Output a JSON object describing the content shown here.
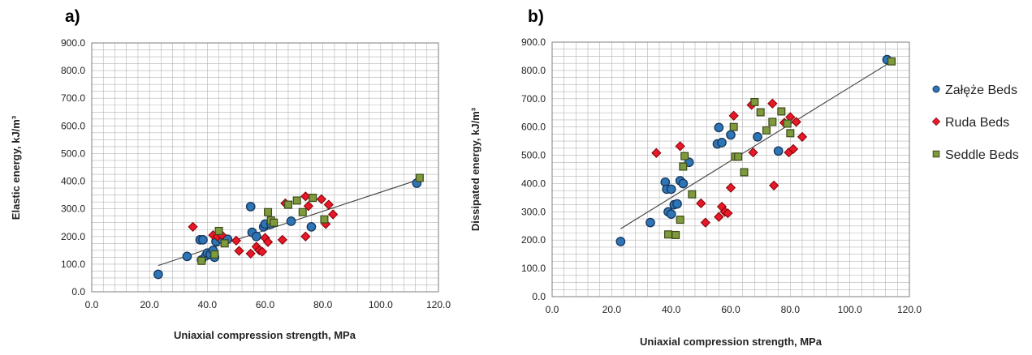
{
  "series_styles": [
    {
      "key": "zaleze",
      "name": "Załęże Beds",
      "color": "#2e75b6",
      "stroke": "#17365d",
      "marker": "circle"
    },
    {
      "key": "ruda",
      "name": "Ruda Beds",
      "color": "#e8182a",
      "stroke": "#7f0000",
      "marker": "diamond"
    },
    {
      "key": "seddle",
      "name": "Seddle Beds",
      "color": "#7f9a3c",
      "stroke": "#3b4a1a",
      "marker": "square"
    }
  ],
  "chart_data": [
    {
      "type": "scatter",
      "panel_label": "a)",
      "xlabel": "Uniaxial compression strength, MPa",
      "ylabel": "Elastic energy, kJ/m³",
      "xlim": [
        0,
        120
      ],
      "ylim": [
        0,
        900
      ],
      "x_ticks": [
        "0.0",
        "20.0",
        "40.0",
        "60.0",
        "80.0",
        "100.0",
        "120.0"
      ],
      "y_ticks": [
        "0.0",
        "100.0",
        "200.0",
        "300.0",
        "400.0",
        "500.0",
        "600.0",
        "700.0",
        "800.0",
        "900.0"
      ],
      "grid": true,
      "trendline": {
        "x": [
          23,
          113
        ],
        "y": [
          95,
          405
        ]
      },
      "series": [
        {
          "name": "Załęże Beds",
          "x": [
            23,
            33,
            37.5,
            38.5,
            38,
            39.5,
            40,
            41,
            42,
            42.5,
            43,
            45,
            47,
            55,
            55.5,
            57,
            59.5,
            60,
            62,
            69,
            76,
            112.5
          ],
          "y": [
            63,
            128,
            188,
            188,
            115,
            130,
            140,
            135,
            150,
            125,
            182,
            190,
            190,
            308,
            215,
            200,
            235,
            245,
            245,
            255,
            235,
            393
          ]
        },
        {
          "name": "Ruda Beds",
          "x": [
            35,
            42,
            43.5,
            45,
            50,
            51,
            55,
            57,
            58,
            59,
            60,
            61,
            66,
            67,
            74,
            74,
            75,
            79.5,
            81,
            82,
            83.5
          ],
          "y": [
            235,
            205,
            200,
            205,
            185,
            148,
            138,
            163,
            150,
            145,
            195,
            180,
            188,
            320,
            345,
            200,
            310,
            335,
            245,
            315,
            280
          ]
        },
        {
          "name": "Seddle Beds",
          "x": [
            38,
            42.5,
            44,
            46,
            61,
            62,
            63,
            68,
            71,
            73,
            76.5,
            80.5,
            113.5
          ],
          "y": [
            112,
            135,
            220,
            175,
            288,
            258,
            250,
            315,
            330,
            288,
            340,
            262,
            412
          ]
        }
      ]
    },
    {
      "type": "scatter",
      "panel_label": "b)",
      "xlabel": "Uniaxial compression strength, MPa",
      "ylabel": "Dissipated energy, kJ/m³",
      "xlim": [
        0,
        120
      ],
      "ylim": [
        0,
        900
      ],
      "x_ticks": [
        "0.0",
        "20.0",
        "40.0",
        "60.0",
        "80.0",
        "100.0",
        "120.0"
      ],
      "y_ticks": [
        "0.0",
        "100.0",
        "200.0",
        "300.0",
        "400.0",
        "500.0",
        "600.0",
        "700.0",
        "800.0",
        "900.0"
      ],
      "grid": true,
      "trendline": {
        "x": [
          23,
          113
        ],
        "y": [
          240,
          825
        ]
      },
      "series": [
        {
          "name": "Załęże Beds",
          "x": [
            23,
            33,
            38,
            38.5,
            39,
            40,
            40,
            41,
            42,
            43,
            44,
            46,
            55.5,
            56,
            57,
            60,
            69,
            76,
            112.5
          ],
          "y": [
            195,
            262,
            405,
            380,
            300,
            292,
            380,
            325,
            328,
            410,
            400,
            475,
            540,
            598,
            545,
            572,
            565,
            515,
            838
          ]
        },
        {
          "name": "Ruda Beds",
          "x": [
            35,
            43,
            50,
            51.5,
            56,
            57,
            58,
            59,
            60,
            61,
            67,
            67.5,
            74,
            74.5,
            78,
            79.5,
            80,
            81,
            82,
            84
          ],
          "y": [
            508,
            532,
            330,
            262,
            282,
            318,
            300,
            295,
            385,
            640,
            678,
            510,
            683,
            393,
            615,
            510,
            635,
            522,
            618,
            565
          ]
        },
        {
          "name": "Seddle Beds",
          "x": [
            39,
            41.5,
            43,
            44,
            44.5,
            47,
            61,
            61.5,
            62.5,
            64.5,
            68,
            70,
            72,
            74,
            77,
            79,
            80,
            114
          ],
          "y": [
            220,
            218,
            272,
            460,
            497,
            362,
            600,
            495,
            495,
            440,
            688,
            652,
            588,
            618,
            655,
            612,
            578,
            832
          ]
        }
      ]
    }
  ]
}
